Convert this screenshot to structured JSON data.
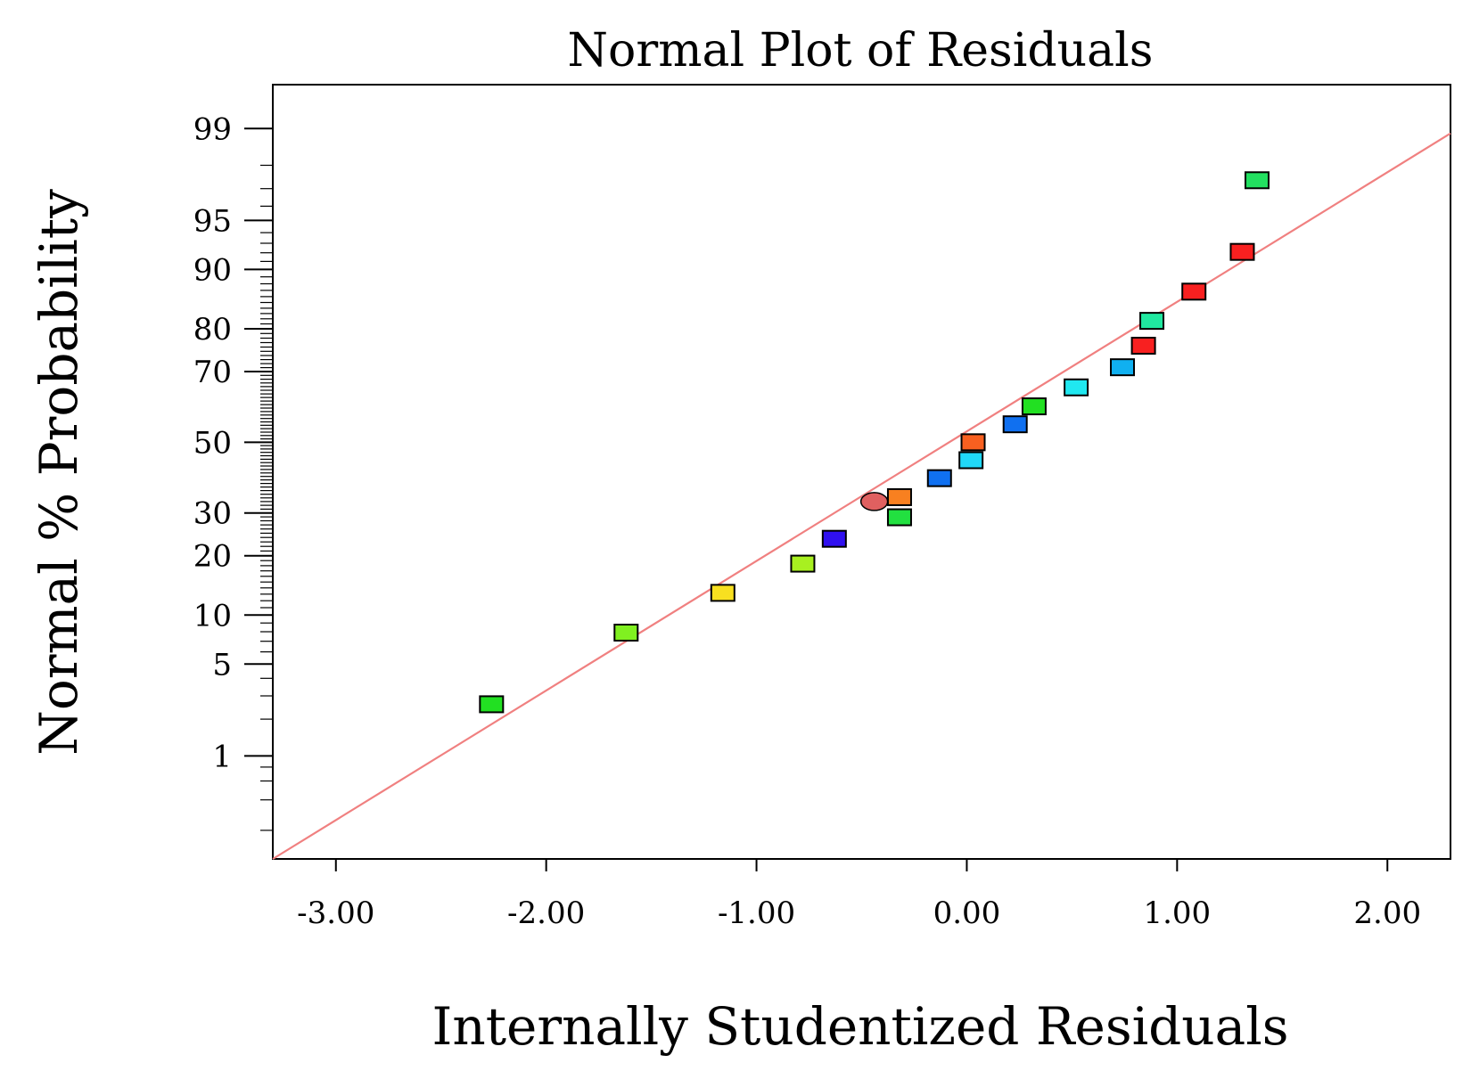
{
  "chart_data": {
    "type": "scatter",
    "title": "Normal Plot of Residuals",
    "xlabel": "Internally Studentized Residuals",
    "ylabel": "Normal % Probability",
    "xlim": [
      -3.3,
      2.3
    ],
    "y_scale": "normal-probability",
    "ylim_percent": [
      0.1,
      99.6
    ],
    "x_ticks": [
      -3.0,
      -2.0,
      -1.0,
      0.0,
      1.0,
      2.0
    ],
    "x_tick_labels": [
      "-3.00",
      "-2.00",
      "-1.00",
      "0.00",
      "1.00",
      "2.00"
    ],
    "y_ticks": [
      1,
      5,
      10,
      20,
      30,
      50,
      70,
      80,
      90,
      95,
      99
    ],
    "y_tick_labels": [
      "1",
      "5",
      "10",
      "20",
      "30",
      "50",
      "70",
      "80",
      "90",
      "95",
      "99"
    ],
    "grid": false,
    "reference_line": {
      "color": "#f08080",
      "from": {
        "x": -3.3,
        "p": 0.1
      },
      "to": {
        "x": 2.3,
        "p": 98.9
      }
    },
    "points": [
      {
        "x": -2.26,
        "p": 2.6,
        "color": "#22e022",
        "marker": "square"
      },
      {
        "x": -1.62,
        "p": 7.9,
        "color": "#80f020",
        "marker": "square"
      },
      {
        "x": -1.16,
        "p": 13.2,
        "color": "#f8e020",
        "marker": "square"
      },
      {
        "x": -0.78,
        "p": 18.4,
        "color": "#a8f020",
        "marker": "square"
      },
      {
        "x": -0.63,
        "p": 23.7,
        "color": "#3010f0",
        "marker": "square"
      },
      {
        "x": -0.44,
        "p": 33.0,
        "color": "#e06060",
        "marker": "ellipse"
      },
      {
        "x": -0.32,
        "p": 28.9,
        "color": "#22e040",
        "marker": "square"
      },
      {
        "x": -0.32,
        "p": 34.2,
        "color": "#f88020",
        "marker": "square"
      },
      {
        "x": -0.13,
        "p": 39.5,
        "color": "#1070f0",
        "marker": "square"
      },
      {
        "x": 0.02,
        "p": 44.7,
        "color": "#20d8f8",
        "marker": "square"
      },
      {
        "x": 0.03,
        "p": 50.0,
        "color": "#f86020",
        "marker": "square"
      },
      {
        "x": 0.23,
        "p": 55.3,
        "color": "#1070f0",
        "marker": "square"
      },
      {
        "x": 0.32,
        "p": 60.5,
        "color": "#22e022",
        "marker": "square"
      },
      {
        "x": 0.52,
        "p": 65.8,
        "color": "#20e8f0",
        "marker": "square"
      },
      {
        "x": 0.74,
        "p": 71.1,
        "color": "#10b0f0",
        "marker": "square"
      },
      {
        "x": 0.84,
        "p": 76.3,
        "color": "#f82020",
        "marker": "square"
      },
      {
        "x": 0.88,
        "p": 81.6,
        "color": "#20e8a0",
        "marker": "square"
      },
      {
        "x": 1.08,
        "p": 86.8,
        "color": "#f82020",
        "marker": "square"
      },
      {
        "x": 1.31,
        "p": 92.1,
        "color": "#f82020",
        "marker": "square"
      },
      {
        "x": 1.38,
        "p": 97.4,
        "color": "#22e060",
        "marker": "square"
      }
    ]
  }
}
